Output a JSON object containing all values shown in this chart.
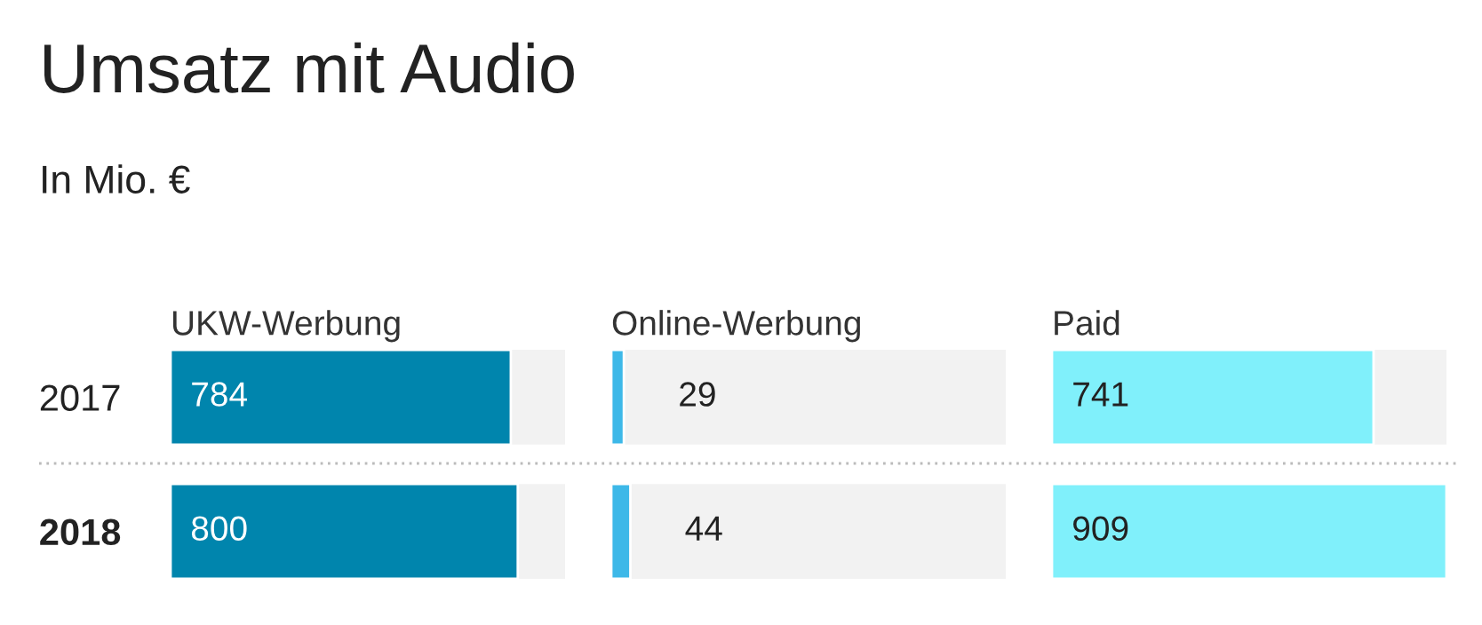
{
  "chart_data": [
    {
      "type": "bar",
      "orientation": "horizontal",
      "title": "Umsatz mit Audio",
      "subtitle": "In Mio. €",
      "categories": [
        "2017",
        "2018"
      ],
      "series": [
        {
          "name": "UKW-Werbung",
          "color": "#0085ad",
          "values": [
            784,
            800
          ]
        }
      ],
      "xlim": [
        0,
        909
      ],
      "data_labels": true,
      "tick_labels": "y"
    },
    {
      "type": "bar",
      "orientation": "horizontal",
      "categories": [
        "2017",
        "2018"
      ],
      "series": [
        {
          "name": "Online-Werbung",
          "color": "#3db8e8",
          "values": [
            29,
            44
          ]
        }
      ],
      "xlim": [
        0,
        909
      ],
      "data_labels": true,
      "tick_labels": false
    },
    {
      "type": "bar",
      "orientation": "horizontal",
      "categories": [
        "2017",
        "2018"
      ],
      "series": [
        {
          "name": "Paid",
          "color": "#80f0fb",
          "values": [
            741,
            909
          ]
        }
      ],
      "xlim": [
        0,
        909
      ],
      "data_labels": true,
      "tick_labels": false
    }
  ]
}
